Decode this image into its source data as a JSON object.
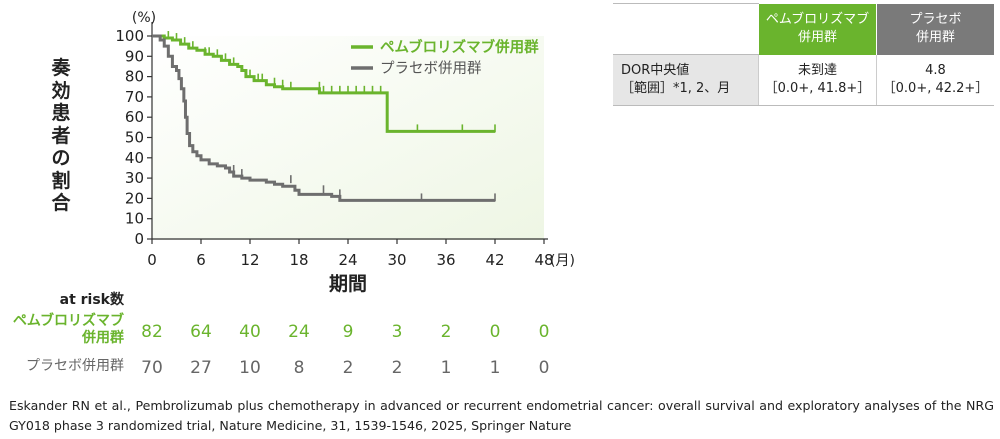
{
  "chart_data": {
    "type": "line",
    "subtype": "kaplan-meier",
    "ylabel_chars": [
      "奏",
      "効",
      "患",
      "者",
      "の",
      "割",
      "合"
    ],
    "y_unit": "(%)",
    "x_unit": "(月)",
    "xlabel": "期間",
    "xlim": [
      0,
      48
    ],
    "ylim": [
      0,
      100
    ],
    "x_ticks": [
      0,
      6,
      12,
      18,
      24,
      30,
      36,
      42,
      48
    ],
    "y_ticks": [
      0,
      10,
      20,
      30,
      40,
      50,
      60,
      70,
      80,
      90,
      100
    ],
    "legend_position": "top-right",
    "series": [
      {
        "name": "ペムブロリズマブ併用群",
        "color": "#6ab42d",
        "steps": [
          [
            0,
            100
          ],
          [
            1.5,
            99
          ],
          [
            2.5,
            98
          ],
          [
            3.5,
            96
          ],
          [
            4.5,
            94
          ],
          [
            5.5,
            93
          ],
          [
            6.5,
            91
          ],
          [
            7.5,
            90
          ],
          [
            8.5,
            88
          ],
          [
            9.5,
            86
          ],
          [
            10.5,
            85
          ],
          [
            11,
            83
          ],
          [
            11.5,
            80
          ],
          [
            12.5,
            78
          ],
          [
            14,
            76
          ],
          [
            15,
            75
          ],
          [
            16,
            74
          ],
          [
            17,
            74
          ],
          [
            20.5,
            72
          ],
          [
            22,
            72
          ],
          [
            24,
            72
          ],
          [
            28.8,
            72
          ],
          [
            28.8,
            53
          ],
          [
            42,
            53
          ]
        ],
        "censors": [
          [
            2,
            99
          ],
          [
            3,
            98
          ],
          [
            4,
            96
          ],
          [
            5,
            94
          ],
          [
            6.5,
            91
          ],
          [
            7,
            91
          ],
          [
            8,
            90
          ],
          [
            9,
            88
          ],
          [
            10,
            86
          ],
          [
            12,
            80
          ],
          [
            13,
            78
          ],
          [
            13.5,
            78
          ],
          [
            15,
            76
          ],
          [
            16,
            75
          ],
          [
            17,
            74
          ],
          [
            20.5,
            74
          ],
          [
            21,
            72
          ],
          [
            22,
            72
          ],
          [
            23,
            72
          ],
          [
            24,
            72
          ],
          [
            25,
            72
          ],
          [
            26,
            72
          ],
          [
            27,
            72
          ],
          [
            28,
            72
          ],
          [
            32.5,
            53
          ],
          [
            38,
            53
          ],
          [
            42,
            53
          ]
        ]
      },
      {
        "name": "プラセボ併用群",
        "color": "#6e6e6e",
        "steps": [
          [
            0,
            100
          ],
          [
            1,
            98
          ],
          [
            1.5,
            95
          ],
          [
            2,
            90
          ],
          [
            2.5,
            85
          ],
          [
            3,
            83
          ],
          [
            3.3,
            79
          ],
          [
            3.6,
            74
          ],
          [
            3.9,
            68
          ],
          [
            4.1,
            60
          ],
          [
            4.3,
            52
          ],
          [
            4.6,
            46
          ],
          [
            5,
            43
          ],
          [
            5.5,
            41
          ],
          [
            6,
            39
          ],
          [
            7,
            37
          ],
          [
            8,
            36
          ],
          [
            9,
            35
          ],
          [
            9.5,
            33
          ],
          [
            10,
            31
          ],
          [
            11,
            30
          ],
          [
            12,
            29
          ],
          [
            14,
            28
          ],
          [
            15,
            27
          ],
          [
            16,
            26
          ],
          [
            17.5,
            24
          ],
          [
            18,
            22
          ],
          [
            22,
            21
          ],
          [
            23,
            19
          ],
          [
            42,
            19
          ]
        ],
        "censors": [
          [
            10,
            33
          ],
          [
            11,
            31
          ],
          [
            17,
            28
          ],
          [
            21,
            23
          ],
          [
            23,
            21
          ],
          [
            33,
            19
          ],
          [
            42,
            19
          ]
        ]
      }
    ],
    "at_risk": {
      "title": "at risk数",
      "times": [
        0,
        6,
        12,
        18,
        24,
        30,
        36,
        42,
        48
      ],
      "rows": [
        {
          "label": "ペムブロリズマブ\n併用群",
          "values": [
            "82",
            "64",
            "40",
            "24",
            "9",
            "3",
            "2",
            "0",
            "0"
          ]
        },
        {
          "label": "プラセボ併用群",
          "values": [
            "70",
            "27",
            "10",
            "8",
            "2",
            "2",
            "1",
            "1",
            "0"
          ]
        }
      ]
    }
  },
  "table": {
    "header": [
      "",
      "ペムブロリズマブ\n併用群",
      "プラセボ\n併用群"
    ],
    "row_label_line1": "DOR中央値",
    "row_label_line2": "［範囲］*1, 2、月",
    "pem_line1": "未到達",
    "pem_line2": "［0.0+, 41.8+］",
    "pla_line1": "4.8",
    "pla_line2": "［0.0+, 42.2+］"
  },
  "footnote": "Eskander RN et al., Pembrolizumab plus chemotherapy in advanced or recurrent endometrial cancer: overall survival and exploratory analyses of the NRG GY018 phase 3 randomized trial, Nature Medicine, 31, 1539-1546, 2025, Springer Nature",
  "colors": {
    "pembro": "#6ab42d",
    "placebo": "#6e6e6e"
  }
}
